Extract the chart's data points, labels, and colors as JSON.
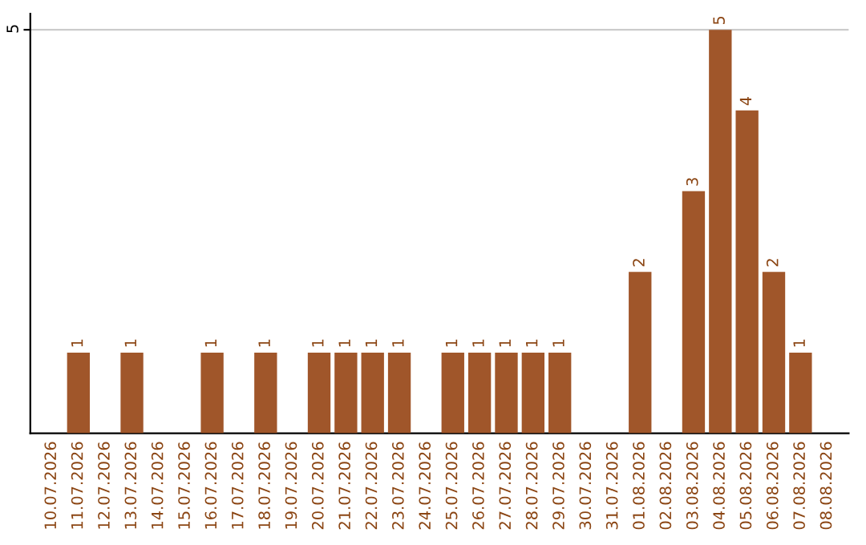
{
  "chart_data": {
    "type": "bar",
    "categories": [
      "10.07.2026",
      "11.07.2026",
      "12.07.2026",
      "13.07.2026",
      "14.07.2026",
      "15.07.2026",
      "16.07.2026",
      "17.07.2026",
      "18.07.2026",
      "19.07.2026",
      "20.07.2026",
      "21.07.2026",
      "22.07.2026",
      "23.07.2026",
      "24.07.2026",
      "25.07.2026",
      "26.07.2026",
      "27.07.2026",
      "28.07.2026",
      "29.07.2026",
      "30.07.2026",
      "31.07.2026",
      "01.08.2026",
      "02.08.2026",
      "03.08.2026",
      "04.08.2026",
      "05.08.2026",
      "06.08.2026",
      "07.08.2026",
      "08.08.2026"
    ],
    "values": [
      0,
      1,
      0,
      1,
      0,
      0,
      1,
      0,
      1,
      0,
      1,
      1,
      1,
      1,
      0,
      1,
      1,
      1,
      1,
      1,
      0,
      0,
      2,
      0,
      3,
      5,
      4,
      2,
      1,
      0
    ],
    "value_labels": [
      null,
      "1",
      null,
      "1",
      null,
      null,
      "1",
      null,
      "1",
      null,
      "1",
      "1",
      "1",
      "1",
      null,
      "1",
      "1",
      "1",
      "1",
      "1",
      null,
      null,
      "2",
      null,
      "3",
      "5",
      "4",
      "2",
      "1",
      null
    ],
    "color": "#a0562a",
    "ylim": [
      0,
      5.2
    ],
    "yticks": [
      5
    ],
    "grid": "y",
    "legend": false
  }
}
